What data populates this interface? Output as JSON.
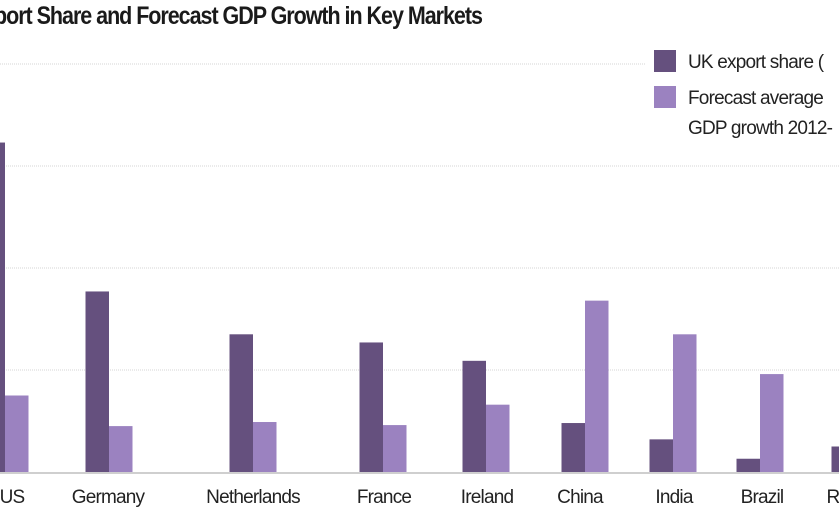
{
  "chart_data": {
    "type": "bar",
    "title": "port Share and Forecast GDP Growth in Key Markets",
    "categories": [
      "US",
      "Germany",
      "Netherlands",
      "France",
      "Ireland",
      "China",
      "India",
      "Brazil",
      "R"
    ],
    "series": [
      {
        "name": "UK export share (",
        "color": "#65507e",
        "values": [
          3.23,
          1.77,
          1.35,
          1.27,
          1.09,
          0.48,
          0.32,
          0.13,
          0.25
        ]
      },
      {
        "name": "Forecast average GDP growth 2012-",
        "color": "#9b82c0",
        "values": [
          0.75,
          0.45,
          0.49,
          0.46,
          0.66,
          1.68,
          1.35,
          0.96,
          null
        ]
      }
    ],
    "legend_lines": [
      "UK export share (",
      "Forecast average",
      "GDP growth 2012-"
    ],
    "ylim": [
      0,
      4
    ],
    "grid": true,
    "legend_position": "top-right",
    "xlabel": "",
    "ylabel": ""
  }
}
